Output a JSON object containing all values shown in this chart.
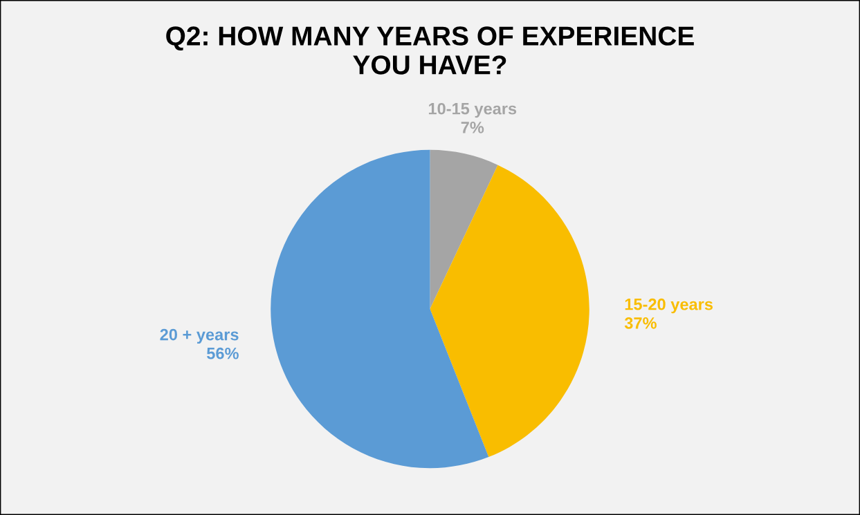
{
  "chart_data": {
    "type": "pie",
    "title": "Q2: HOW MANY YEARS OF EXPERIENCE\nYOU HAVE?",
    "categories": [
      "10-15 years",
      "15-20 years",
      "20 + years"
    ],
    "values": [
      7,
      37,
      56
    ],
    "value_labels": [
      "7%",
      "37%",
      "56%"
    ],
    "colors": [
      "#a5a5a5",
      "#f9bd00",
      "#5b9bd5"
    ]
  }
}
